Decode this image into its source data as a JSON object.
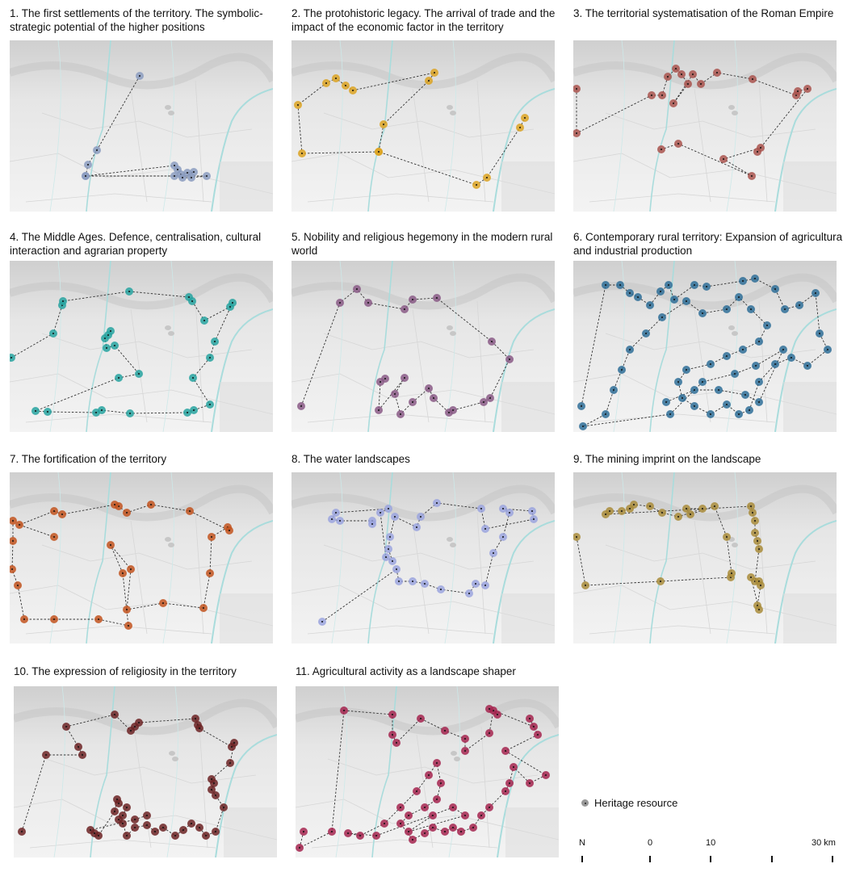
{
  "panels": [
    {
      "title": "1. The first settlements of the territory. The symbolic-strategic potential of the higher positions",
      "color": "#8b9cc0"
    },
    {
      "title": "2. The protohistoric legacy. The arrival of trade and the impact of the economic factor in the territory",
      "color": "#dca322"
    },
    {
      "title": "3. The territorial systematisation of the Roman Empire",
      "color": "#a9534e"
    },
    {
      "title": "4. The Middle Ages. Defence, centralisation, cultural interaction and agrarian property",
      "color": "#27a3a0"
    },
    {
      "title": "5. Nobility and religious hegemony in the modern rural world",
      "color": "#8a5a86"
    },
    {
      "title": "6. Contemporary rural territory: Expansion of agricultural and industrial production",
      "color": "#2f6f98"
    },
    {
      "title": "7. The fortification of the territory",
      "color": "#c2541f"
    },
    {
      "title": "8. The water landscapes",
      "color": "#9ba4de"
    },
    {
      "title": "9. The mining imprint on the landscape",
      "color": "#a98c3b"
    },
    {
      "title": "10. The expression of religiosity in the territory",
      "color": "#6c2325"
    },
    {
      "title": "11. Agricultural activity as a landscape shaper",
      "color": "#a4244f"
    }
  ],
  "legend": {
    "label": "Heritage resource",
    "color": "#999999"
  },
  "scale": {
    "north": "N",
    "labels": [
      "0",
      "10",
      "30 km"
    ]
  }
}
